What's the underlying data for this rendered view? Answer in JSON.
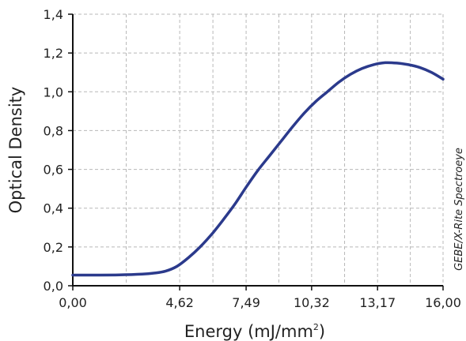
{
  "chart_data": {
    "type": "line",
    "title": "",
    "xlabel": "Energy (mJ/mm",
    "xlabel_sup": "2",
    "xlabel_close": ")",
    "ylabel": "Optical Density",
    "source_note": "GEBE/X-Rite Spectroeye",
    "xlim": [
      0,
      16
    ],
    "ylim": [
      0,
      1.4
    ],
    "x_ticks": [
      0,
      4.62,
      7.49,
      10.32,
      13.17,
      16
    ],
    "x_tick_labels": [
      "0,00",
      "4,62",
      "7,49",
      "10,32",
      "13,17",
      "16,00"
    ],
    "y_ticks": [
      0,
      0.2,
      0.4,
      0.6,
      0.8,
      1.0,
      1.2,
      1.4
    ],
    "y_tick_labels": [
      "0,0",
      "0,2",
      "0,4",
      "0,6",
      "0,8",
      "1,0",
      "1,2",
      "1,4"
    ],
    "grid": true,
    "grid_style": "dashed",
    "series": [
      {
        "color": "#2b3a8c",
        "x": [
          0,
          1.0,
          2.0,
          3.0,
          3.5,
          4.0,
          4.5,
          5.0,
          5.5,
          6.0,
          6.5,
          7.0,
          7.5,
          8.0,
          8.5,
          9.0,
          9.5,
          10.0,
          10.5,
          11.0,
          11.5,
          12.0,
          12.5,
          13.0,
          13.5,
          14.0,
          14.5,
          15.0,
          15.5,
          16.0
        ],
        "y": [
          0.055,
          0.055,
          0.056,
          0.06,
          0.065,
          0.075,
          0.1,
          0.145,
          0.2,
          0.265,
          0.34,
          0.42,
          0.51,
          0.595,
          0.67,
          0.745,
          0.82,
          0.89,
          0.95,
          1.0,
          1.05,
          1.09,
          1.12,
          1.14,
          1.15,
          1.148,
          1.14,
          1.125,
          1.1,
          1.065
        ]
      }
    ]
  }
}
